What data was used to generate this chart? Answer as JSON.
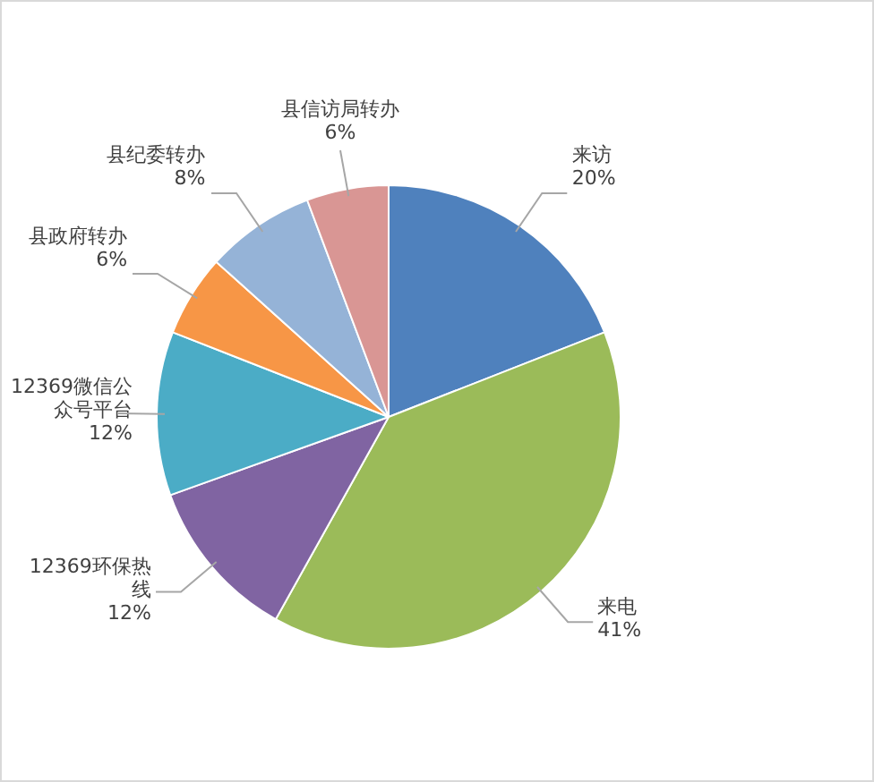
{
  "chart_data": {
    "type": "pie",
    "categories": [
      "来访",
      "来电",
      "12369环保热线",
      "12369微信公众号平台",
      "县政府转办",
      "县纪委转办",
      "县信访局转办"
    ],
    "values": [
      20,
      41,
      12,
      12,
      6,
      8,
      6
    ],
    "value_labels": [
      "20%",
      "41%",
      "12%",
      "12%",
      "6%",
      "8%",
      "6%"
    ],
    "colors": [
      "#4f81bd",
      "#9bbb59",
      "#8064a2",
      "#4bacc6",
      "#f79646",
      "#95b3d7",
      "#d99694"
    ],
    "legend": false
  }
}
